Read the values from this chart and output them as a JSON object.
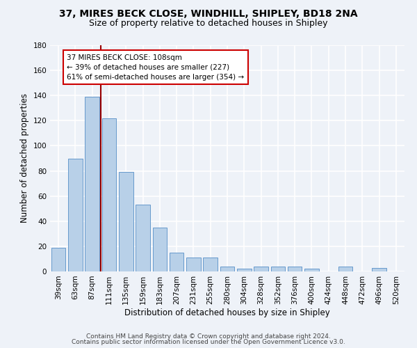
{
  "title1": "37, MIRES BECK CLOSE, WINDHILL, SHIPLEY, BD18 2NA",
  "title2": "Size of property relative to detached houses in Shipley",
  "xlabel": "Distribution of detached houses by size in Shipley",
  "ylabel": "Number of detached properties",
  "categories": [
    "39sqm",
    "63sqm",
    "87sqm",
    "111sqm",
    "135sqm",
    "159sqm",
    "183sqm",
    "207sqm",
    "231sqm",
    "255sqm",
    "280sqm",
    "304sqm",
    "328sqm",
    "352sqm",
    "376sqm",
    "400sqm",
    "424sqm",
    "448sqm",
    "472sqm",
    "496sqm",
    "520sqm"
  ],
  "values": [
    19,
    90,
    139,
    122,
    79,
    53,
    35,
    15,
    11,
    11,
    4,
    2,
    4,
    4,
    4,
    2,
    0,
    4,
    0,
    3,
    0
  ],
  "bar_color": "#b8d0e8",
  "bar_edge_color": "#6699cc",
  "vline_color": "#990000",
  "vline_x_index": 2.5,
  "annotation_text": "37 MIRES BECK CLOSE: 108sqm\n← 39% of detached houses are smaller (227)\n61% of semi-detached houses are larger (354) →",
  "annotation_box_color": "#ffffff",
  "annotation_box_edge_color": "#cc0000",
  "ylim": [
    0,
    180
  ],
  "yticks": [
    0,
    20,
    40,
    60,
    80,
    100,
    120,
    140,
    160,
    180
  ],
  "background_color": "#eef2f8",
  "grid_color": "#ffffff",
  "footer1": "Contains HM Land Registry data © Crown copyright and database right 2024.",
  "footer2": "Contains public sector information licensed under the Open Government Licence v3.0.",
  "title1_fontsize": 10,
  "title2_fontsize": 9,
  "xlabel_fontsize": 8.5,
  "ylabel_fontsize": 8.5,
  "tick_fontsize": 7.5,
  "annotation_fontsize": 7.5,
  "footer_fontsize": 6.5
}
